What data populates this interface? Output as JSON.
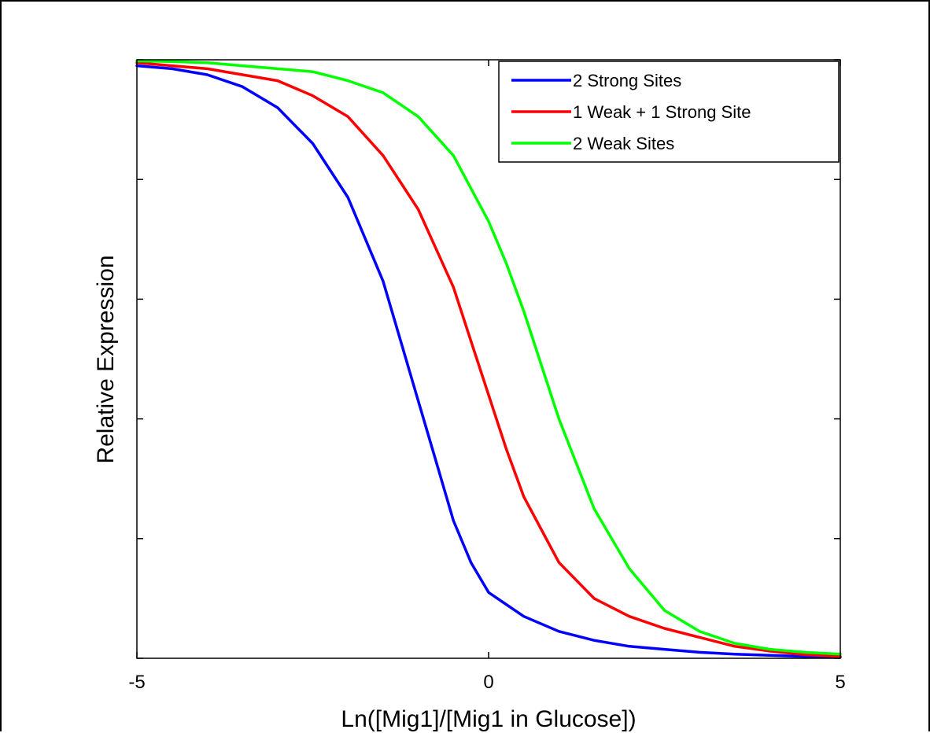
{
  "chart_data": {
    "type": "line",
    "xlabel": "Ln([Mig1]/[Mig1 in Glucose])",
    "ylabel": "Relative Expression",
    "xlim": [
      -5,
      5
    ],
    "ylim": [
      0,
      1
    ],
    "x_ticks": [
      -5,
      0,
      5
    ],
    "x_tick_labels": [
      "-5",
      "0",
      "5"
    ],
    "y_ticks": [
      0,
      0.2,
      0.4,
      0.6,
      0.8,
      1.0
    ],
    "y_tick_labels": [],
    "grid": false,
    "legend_position": "top-right",
    "series": [
      {
        "name": "2 Strong Sites",
        "color": "#0000ff",
        "x": [
          -5,
          -4.5,
          -4,
          -3.5,
          -3,
          -2.5,
          -2,
          -1.5,
          -1.25,
          -1,
          -0.75,
          -0.5,
          -0.25,
          0,
          0.5,
          1,
          1.5,
          2,
          2.5,
          3,
          3.5,
          4,
          4.5,
          5
        ],
        "y": [
          0.99,
          0.985,
          0.975,
          0.955,
          0.92,
          0.86,
          0.77,
          0.63,
          0.53,
          0.43,
          0.33,
          0.23,
          0.16,
          0.11,
          0.07,
          0.045,
          0.03,
          0.02,
          0.015,
          0.01,
          0.007,
          0.005,
          0.003,
          0.002
        ]
      },
      {
        "name": "1 Weak + 1 Strong Site",
        "color": "#ff0000",
        "x": [
          -5,
          -4.5,
          -4,
          -3.5,
          -3,
          -2.5,
          -2,
          -1.5,
          -1,
          -0.5,
          -0.25,
          0,
          0.25,
          0.5,
          1,
          1.5,
          2,
          2.5,
          3,
          3.5,
          4,
          4.5,
          5
        ],
        "y": [
          0.995,
          0.99,
          0.985,
          0.975,
          0.965,
          0.94,
          0.905,
          0.84,
          0.75,
          0.62,
          0.53,
          0.44,
          0.35,
          0.27,
          0.16,
          0.1,
          0.07,
          0.05,
          0.035,
          0.02,
          0.012,
          0.006,
          0.003
        ]
      },
      {
        "name": "2 Weak Sites",
        "color": "#00ff00",
        "x": [
          -5,
          -4.5,
          -4,
          -3.5,
          -3,
          -2.5,
          -2,
          -1.5,
          -1,
          -0.5,
          0,
          0.25,
          0.5,
          0.75,
          1,
          1.5,
          2,
          2.5,
          3,
          3.5,
          4,
          4.5,
          5
        ],
        "y": [
          0.998,
          0.997,
          0.995,
          0.99,
          0.985,
          0.98,
          0.965,
          0.945,
          0.905,
          0.84,
          0.73,
          0.66,
          0.58,
          0.49,
          0.4,
          0.25,
          0.15,
          0.08,
          0.045,
          0.025,
          0.015,
          0.01,
          0.007
        ]
      }
    ]
  }
}
